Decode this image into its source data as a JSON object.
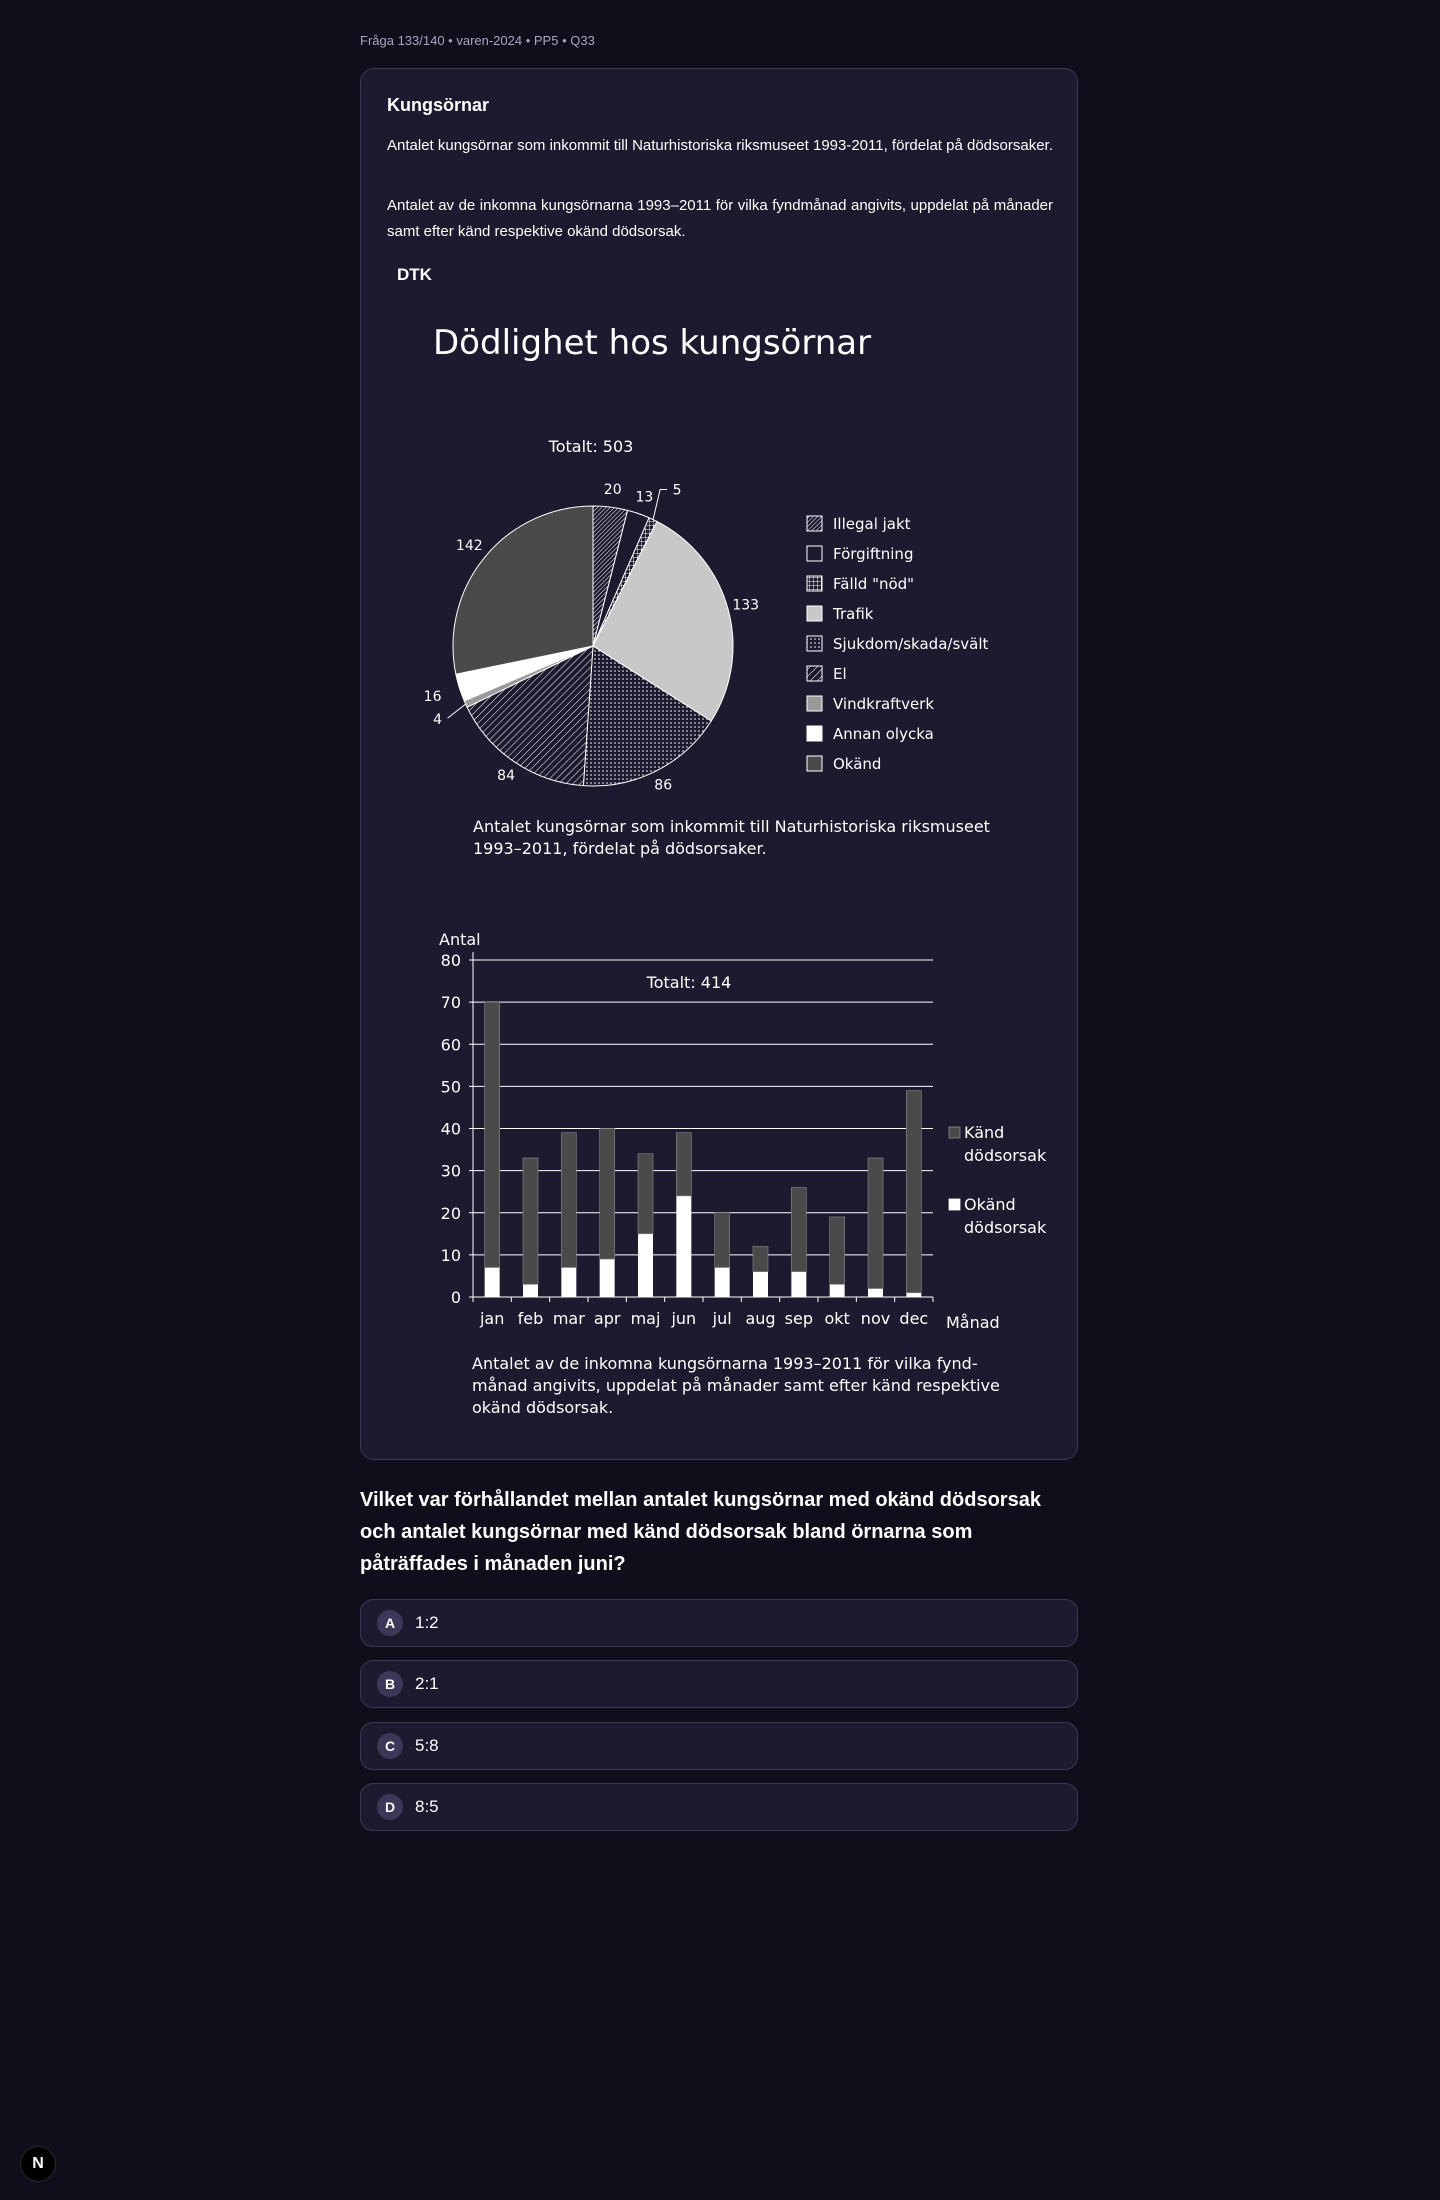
{
  "meta": "Fråga 133/140 • varen-2024 • PP5 • Q33",
  "card": {
    "title": "Kungsörnar",
    "p1": "Antalet kungsörnar som inkommit till Naturhistoriska riksmuseet 1993-2011, fördelat på dödsorsaker.",
    "p2": "Antalet av de inkomna kungsörnarna 1993–2011 för vilka fyndmånad angivits, uppdelat på månader samt efter känd respektive okänd dödsorsak.",
    "dtk": "DTK"
  },
  "figure": {
    "title": "Dödlighet hos kungsörnar",
    "pie_total": "Totalt: 503",
    "pie_caption_1": "Antalet kungsörnar som inkommit till Naturhistoriska riksmuseet",
    "pie_caption_2": "1993–2011, fördelat på dödsorsaker.",
    "bar_total": "Totalt: 414",
    "bar_ylabel": "Antal",
    "bar_xlabel": "Månad",
    "bar_caption_1": "Antalet av de inkomna kungsörnarna 1993–2011 för vilka fynd-",
    "bar_caption_2": "månad angivits, uppdelat på månader samt efter känd respektive",
    "bar_caption_3": "okänd dödsorsak."
  },
  "chart_data": [
    {
      "type": "pie",
      "title": "Dödlighet hos kungsörnar",
      "total": 503,
      "slices": [
        {
          "label": "Illegal jakt",
          "value": 20,
          "pattern": "diag-dense"
        },
        {
          "label": "Förgiftning",
          "value": 13,
          "pattern": "empty"
        },
        {
          "label": "Fälld \"nöd\"",
          "value": 5,
          "pattern": "grid"
        },
        {
          "label": "Trafik",
          "value": 133,
          "pattern": "light-gray"
        },
        {
          "label": "Sjukdom/skada/svält",
          "value": 86,
          "pattern": "dots"
        },
        {
          "label": "El",
          "value": 84,
          "pattern": "diag-wide"
        },
        {
          "label": "Vindkraftverk",
          "value": 4,
          "pattern": "mid-gray"
        },
        {
          "label": "Annan olycka",
          "value": 16,
          "pattern": "white"
        },
        {
          "label": "Okänd",
          "value": 142,
          "pattern": "dark-gray"
        }
      ]
    },
    {
      "type": "bar",
      "stacked": true,
      "total": 414,
      "categories": [
        "jan",
        "feb",
        "mar",
        "apr",
        "maj",
        "jun",
        "jul",
        "aug",
        "sep",
        "okt",
        "nov",
        "dec"
      ],
      "series": [
        {
          "name": "Okänd dödsorsak",
          "color": "#ffffff",
          "values": [
            7,
            3,
            7,
            9,
            15,
            24,
            7,
            6,
            6,
            3,
            2,
            1
          ]
        },
        {
          "name": "Känd dödsorsak",
          "color": "#4a4a4a",
          "values": [
            63,
            30,
            32,
            31,
            19,
            15,
            13,
            6,
            20,
            16,
            31,
            48
          ]
        }
      ],
      "ylabel": "Antal",
      "xlabel": "Månad",
      "ylim": [
        0,
        80
      ],
      "yticks": [
        0,
        10,
        20,
        30,
        40,
        50,
        60,
        70,
        80
      ],
      "grid": true,
      "legend": "right"
    }
  ],
  "question": "Vilket var förhållandet mellan antalet kungsörnar med okänd dödsorsak och antalet kungsörnar med känd dödsorsak bland örnarna som påträffades i månaden juni?",
  "options": [
    {
      "letter": "A",
      "text": "1:2"
    },
    {
      "letter": "B",
      "text": "2:1"
    },
    {
      "letter": "C",
      "text": "5:8"
    },
    {
      "letter": "D",
      "text": "8:5"
    }
  ],
  "logo": "N"
}
